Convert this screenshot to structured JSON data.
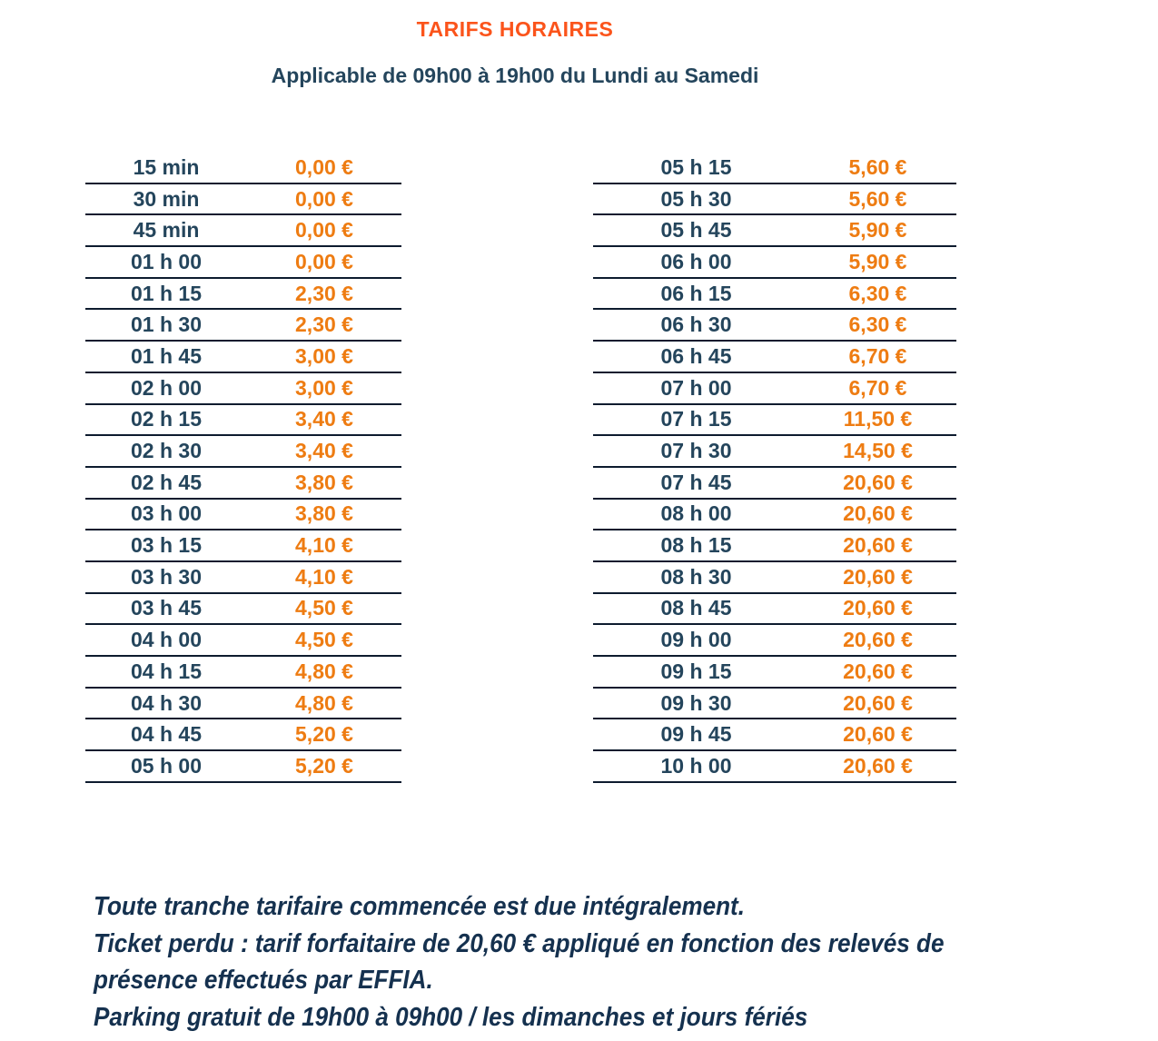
{
  "header": {
    "title": "TARIFS HORAIRES",
    "subtitle": "Applicable de 09h00 à 19h00 du Lundi au Samedi"
  },
  "colors": {
    "title_orange": "#FB541B",
    "price_orange": "#EE7C12",
    "time_navy": "#24455C",
    "line_navy": "#0D1B2E",
    "footer_navy": "#15314F"
  },
  "tables": {
    "left": {
      "rows": [
        {
          "time": "15 min",
          "price": "0,00 €"
        },
        {
          "time": "30 min",
          "price": "0,00 €"
        },
        {
          "time": "45 min",
          "price": "0,00 €"
        },
        {
          "time": "01 h 00",
          "price": "0,00 €"
        },
        {
          "time": "01 h 15",
          "price": "2,30 €"
        },
        {
          "time": "01 h 30",
          "price": "2,30 €"
        },
        {
          "time": "01 h 45",
          "price": "3,00 €"
        },
        {
          "time": "02 h 00",
          "price": "3,00 €"
        },
        {
          "time": "02 h 15",
          "price": "3,40 €"
        },
        {
          "time": "02 h 30",
          "price": "3,40 €"
        },
        {
          "time": "02 h 45",
          "price": "3,80 €"
        },
        {
          "time": "03 h 00",
          "price": "3,80 €"
        },
        {
          "time": "03 h 15",
          "price": "4,10 €"
        },
        {
          "time": "03 h 30",
          "price": "4,10 €"
        },
        {
          "time": "03 h 45",
          "price": "4,50 €"
        },
        {
          "time": "04 h 00",
          "price": "4,50 €"
        },
        {
          "time": "04 h 15",
          "price": "4,80 €"
        },
        {
          "time": "04 h 30",
          "price": "4,80 €"
        },
        {
          "time": "04 h 45",
          "price": "5,20 €"
        },
        {
          "time": "05 h 00",
          "price": "5,20 €"
        }
      ]
    },
    "right": {
      "rows": [
        {
          "time": "05 h 15",
          "price": "5,60 €"
        },
        {
          "time": "05 h 30",
          "price": "5,60 €"
        },
        {
          "time": "05 h 45",
          "price": "5,90 €"
        },
        {
          "time": "06 h 00",
          "price": "5,90 €"
        },
        {
          "time": "06 h 15",
          "price": "6,30 €"
        },
        {
          "time": "06 h 30",
          "price": "6,30 €"
        },
        {
          "time": "06 h 45",
          "price": "6,70 €"
        },
        {
          "time": "07 h 00",
          "price": "6,70 €"
        },
        {
          "time": "07 h 15",
          "price": "11,50 €"
        },
        {
          "time": "07 h 30",
          "price": "14,50 €"
        },
        {
          "time": "07 h 45",
          "price": "20,60 €"
        },
        {
          "time": "08 h 00",
          "price": "20,60 €"
        },
        {
          "time": "08 h 15",
          "price": "20,60 €"
        },
        {
          "time": "08 h 30",
          "price": "20,60 €"
        },
        {
          "time": "08 h 45",
          "price": "20,60 €"
        },
        {
          "time": "09 h 00",
          "price": "20,60 €"
        },
        {
          "time": "09 h 15",
          "price": "20,60 €"
        },
        {
          "time": "09 h 30",
          "price": "20,60 €"
        },
        {
          "time": "09 h 45",
          "price": "20,60 €"
        },
        {
          "time": "10 h 00",
          "price": "20,60 €"
        }
      ]
    }
  },
  "footer": {
    "lines": [
      "Toute tranche tarifaire commencée est due intégralement.",
      "Ticket perdu : tarif forfaitaire de 20,60 € appliqué en fonction des relevés de",
      "présence effectués par EFFIA.",
      "Parking gratuit de 19h00 à 09h00 / les dimanches et jours fériés"
    ]
  }
}
